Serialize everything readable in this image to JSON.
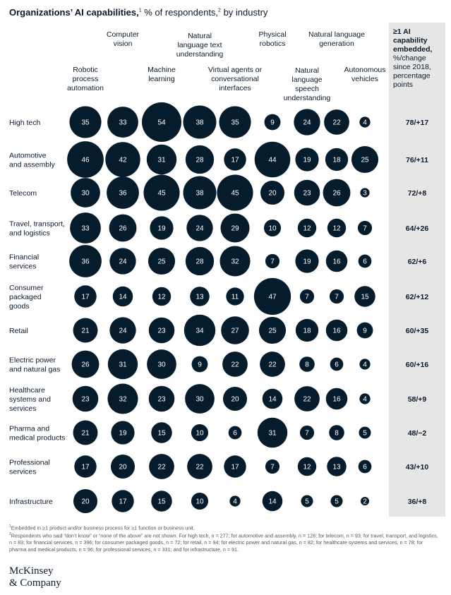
{
  "title": {
    "bold": "Organizations’ AI capabilities,",
    "sup1": "1",
    "rest": " % of respondents,",
    "sup2": "2",
    "rest2": " by industry"
  },
  "summary_header": [
    "≥1 AI",
    "capability",
    "embedded,",
    "%/change",
    "since 2018,",
    "percentage",
    "points"
  ],
  "chart_data": {
    "type": "bubble",
    "title": "Organizations’ AI capabilities, % of respondents, by industry",
    "columns": [
      [
        "Robotic",
        "process",
        "automation"
      ],
      [
        "Computer",
        "vision"
      ],
      [
        "Machine",
        "learning"
      ],
      [
        "Natural",
        "language text",
        "understanding"
      ],
      [
        "Virtual agents or",
        "conversational",
        "interfaces"
      ],
      [
        "Physical",
        "robotics"
      ],
      [
        "Natural",
        "language",
        "speech",
        "understanding"
      ],
      [
        "Natural language",
        "generation"
      ],
      [
        "Autonomous",
        "vehicles"
      ]
    ],
    "rows": [
      {
        "industry": [
          "High tech"
        ],
        "values": [
          35,
          33,
          54,
          38,
          35,
          9,
          24,
          22,
          4
        ],
        "summary": "78/+17"
      },
      {
        "industry": [
          "Automotive",
          "and assembly"
        ],
        "values": [
          46,
          42,
          31,
          28,
          17,
          44,
          19,
          18,
          25
        ],
        "summary": "76/+11"
      },
      {
        "industry": [
          "Telecom"
        ],
        "values": [
          30,
          36,
          45,
          38,
          45,
          20,
          23,
          26,
          3
        ],
        "summary": "72/+8"
      },
      {
        "industry": [
          "Travel, transport,",
          "and logistics"
        ],
        "values": [
          33,
          26,
          19,
          24,
          29,
          10,
          12,
          12,
          7
        ],
        "summary": "64/+26"
      },
      {
        "industry": [
          "Financial",
          "services"
        ],
        "values": [
          36,
          24,
          25,
          28,
          32,
          7,
          19,
          16,
          6
        ],
        "summary": "62/+6"
      },
      {
        "industry": [
          "Consumer",
          "packaged",
          "goods"
        ],
        "values": [
          17,
          14,
          12,
          13,
          11,
          47,
          7,
          7,
          15
        ],
        "summary": "62/+12"
      },
      {
        "industry": [
          "Retail"
        ],
        "values": [
          21,
          24,
          23,
          34,
          27,
          25,
          18,
          16,
          9
        ],
        "summary": "60/+35"
      },
      {
        "industry": [
          "Electric power",
          "and natural gas"
        ],
        "values": [
          26,
          31,
          30,
          9,
          22,
          22,
          8,
          6,
          4
        ],
        "summary": "60/+16"
      },
      {
        "industry": [
          "Healthcare",
          "systems and",
          "services"
        ],
        "values": [
          23,
          32,
          23,
          30,
          20,
          14,
          22,
          16,
          4
        ],
        "summary": "58/+9"
      },
      {
        "industry": [
          "Pharma and",
          "medical products"
        ],
        "values": [
          21,
          19,
          15,
          10,
          6,
          31,
          7,
          8,
          5
        ],
        "summary": "48/−2"
      },
      {
        "industry": [
          "Professional",
          "services"
        ],
        "values": [
          17,
          20,
          22,
          22,
          17,
          7,
          12,
          13,
          6
        ],
        "summary": "43/+10"
      },
      {
        "industry": [
          "Infrastructure"
        ],
        "values": [
          20,
          17,
          15,
          10,
          4,
          14,
          5,
          5,
          2
        ],
        "summary": "36/+8"
      }
    ]
  },
  "footnotes": {
    "fn1_mark": "1",
    "fn1": "Embedded in ≥1 product and/or business process for ≥1 function or business unit.",
    "fn2_mark": "2",
    "fn2": "Respondents who said “don’t know” or “none of the above” are not shown. For high tech, n = 277; for automotive and assembly, n = 128; for telecom, n = 93; for travel, transport, and logistics, n = 83; for financial services, n = 396; for consumer packaged goods, n = 72; for retail, n = 94; for electric power and natural gas, n = 82; for healthcare systems and services, n = 78; for pharma and medical products, n = 96; for professional services, n = 331; and for infrastructure, n = 91."
  },
  "logo": {
    "line1": "McKinsey",
    "line2": "& Company"
  }
}
